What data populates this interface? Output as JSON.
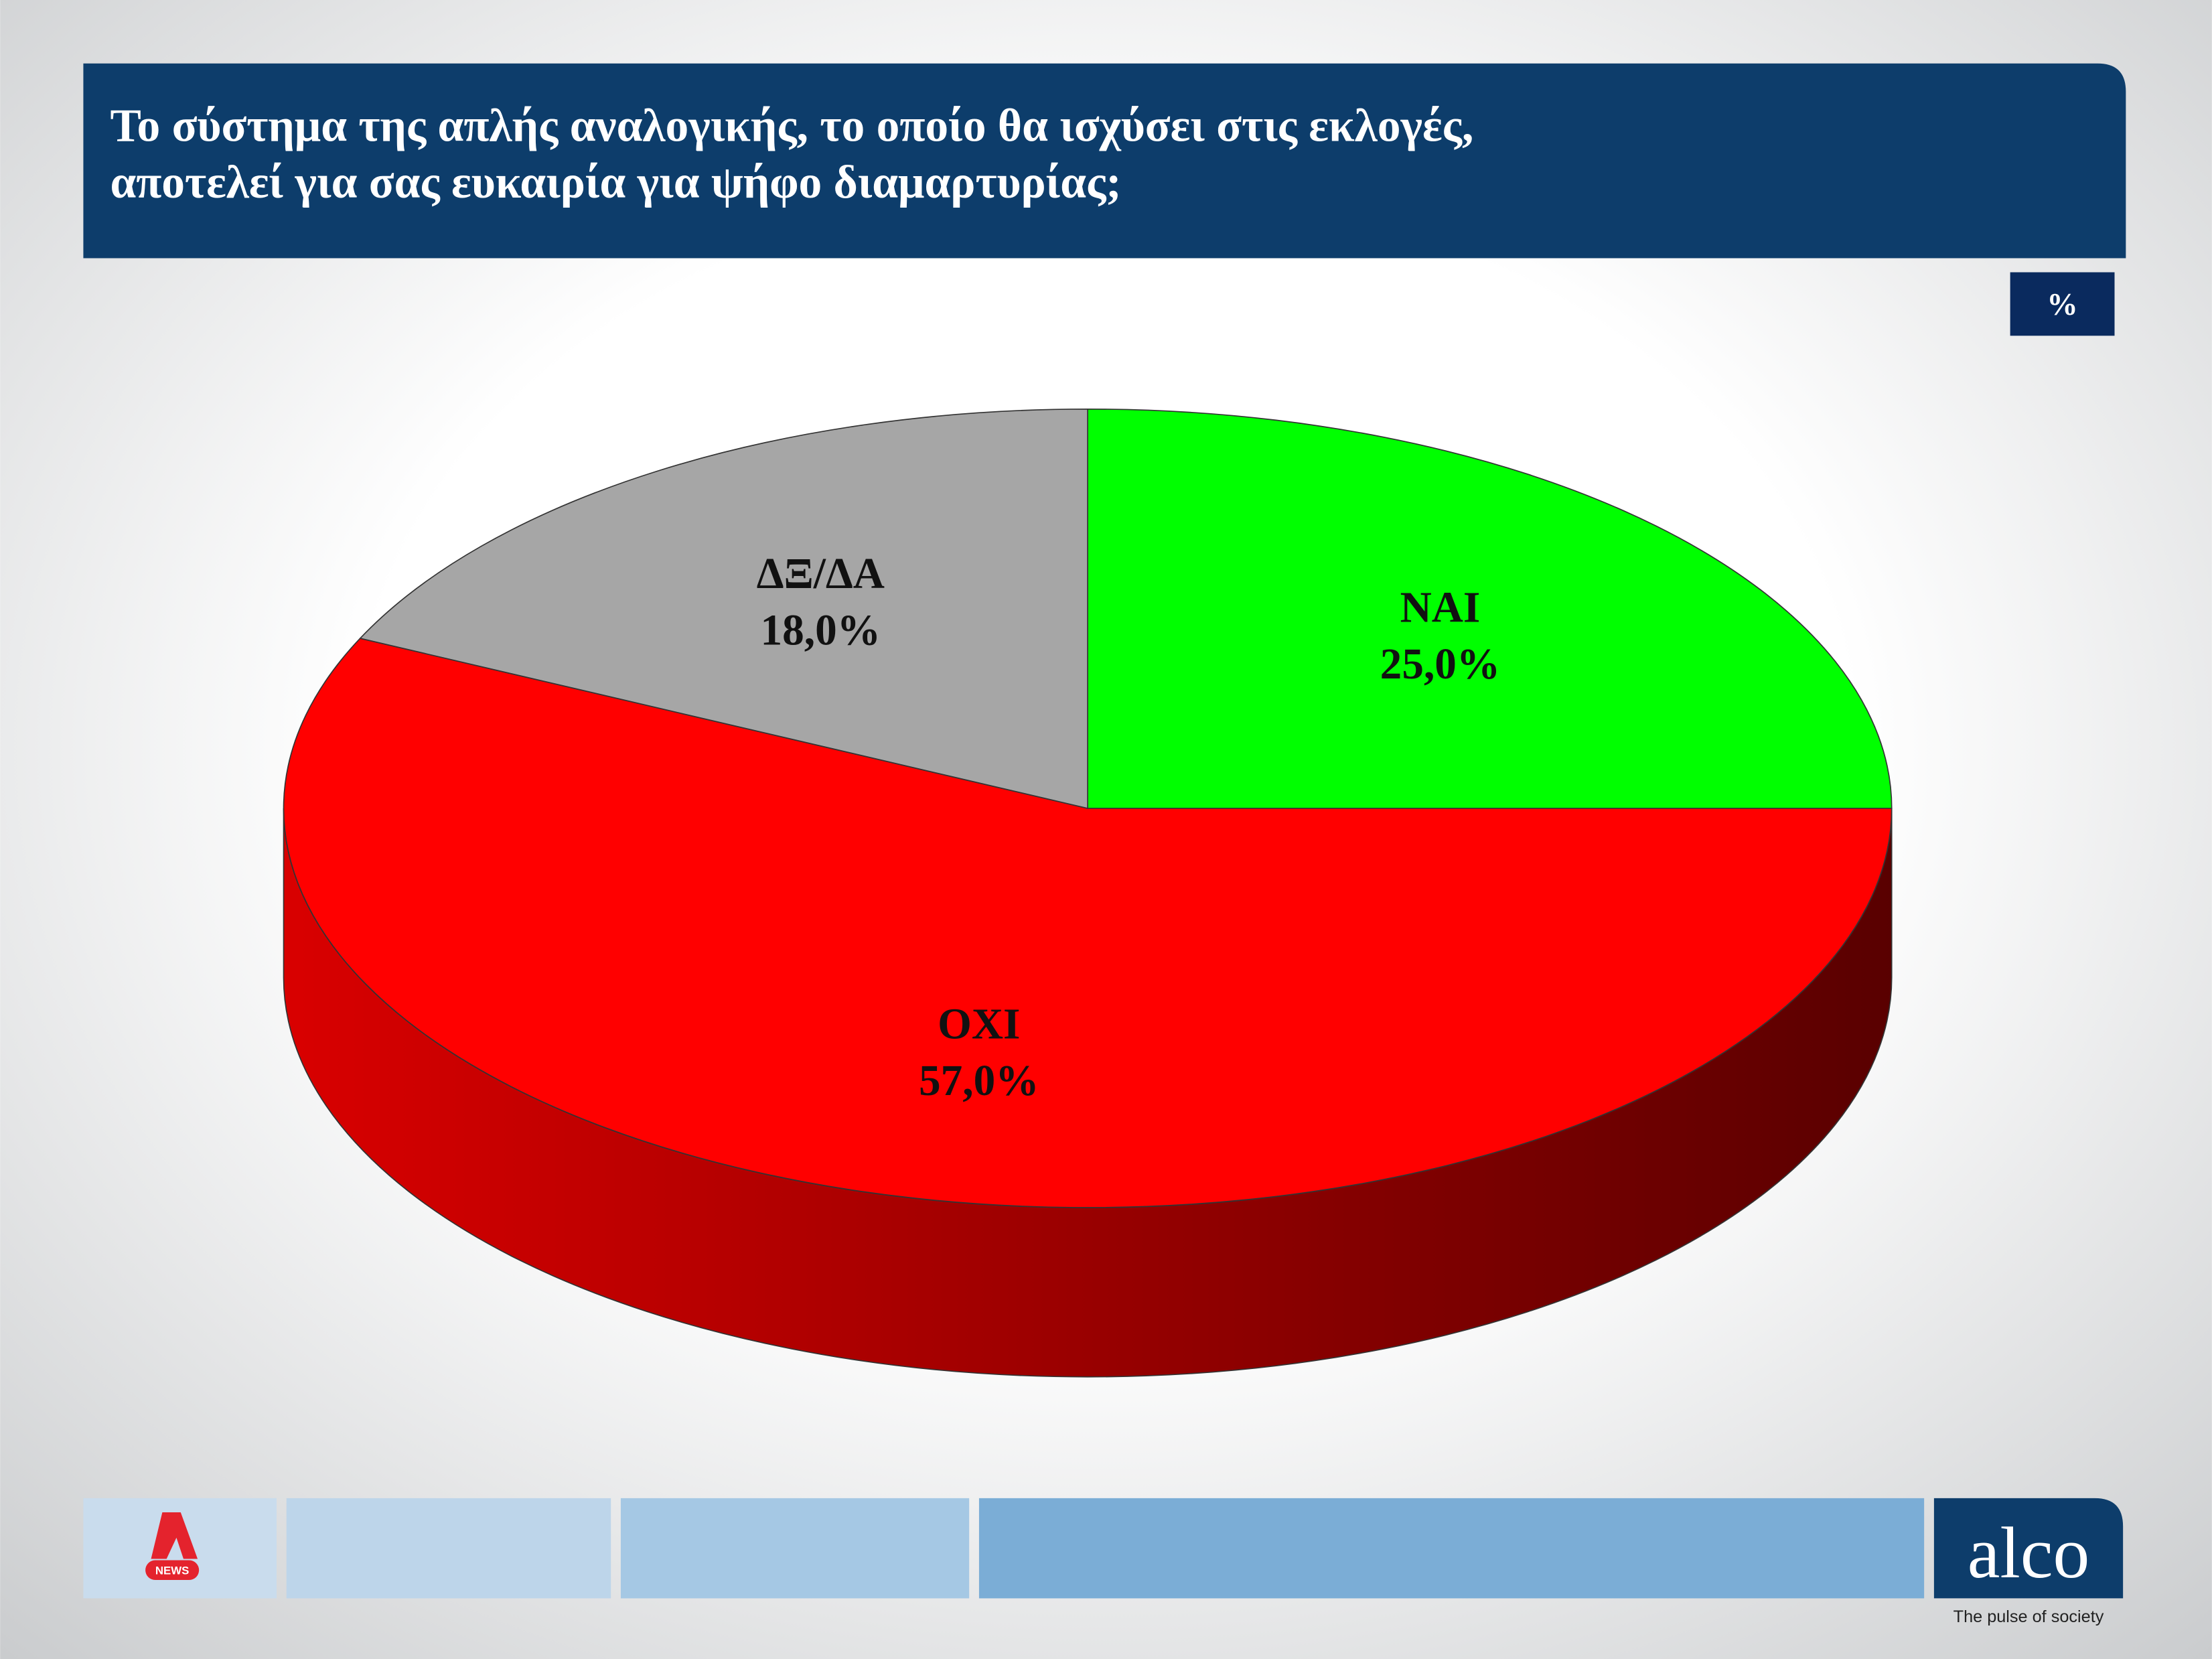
{
  "chart_data": {
    "type": "pie",
    "title": [
      "Το σύστημα της απλής αναλογικής, το οποίο θα ισχύσει στις εκλογές,",
      "αποτελεί για σας ευκαιρία για ψήφο διαμαρτυρίας;"
    ],
    "unit": "%",
    "categories": [
      "ΝΑΙ",
      "ΟΧΙ",
      "ΔΞ/ΔΑ"
    ],
    "values": [
      25,
      57,
      18
    ],
    "value_labels": [
      "25,0%",
      "57,0%",
      "18,0%"
    ],
    "colors": [
      "#00ff00",
      "#ff0000",
      "#a6a6a6"
    ],
    "start_angle": -90,
    "direction": "clockwise"
  },
  "branding": {
    "channel": "NEWS",
    "company": "alco",
    "slogan": "The pulse of society"
  }
}
